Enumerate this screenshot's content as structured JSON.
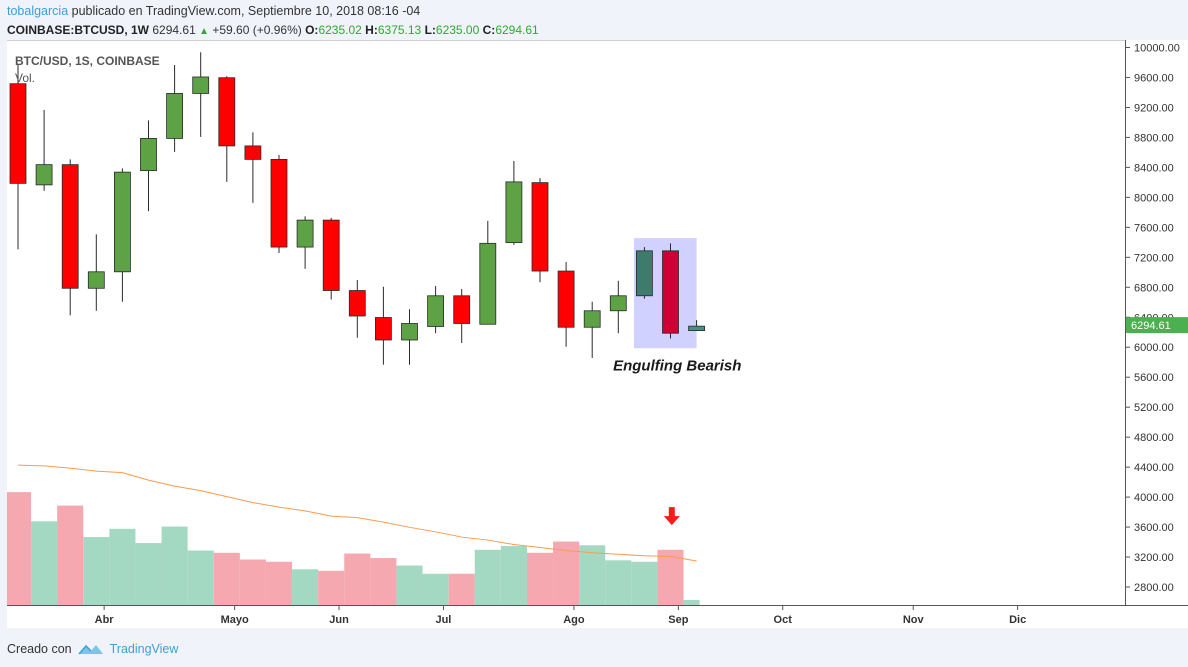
{
  "header": {
    "author": "tobalgarcia",
    "published": "publicado en TradingView.com, Septiembre 10, 2018 08:16 -04",
    "symbol": "COINBASE:BTCUSD, 1W",
    "last": "6294.61",
    "change": "+59.60 (+0.96%)",
    "o_label": "O:",
    "o": "6235.02",
    "h_label": "H:",
    "h": "6375.13",
    "l_label": "L:",
    "l": "6235.00",
    "c_label": "C:",
    "c": "6294.61"
  },
  "chart_data": {
    "type": "candlestick",
    "pane_title": "BTC/USD, 1S, COINBASE",
    "volume_label": "Vol.",
    "annotation": "Engulfing Bearish",
    "last_price_label": "6294.61",
    "y_ticks": [
      "10000.00",
      "9600.00",
      "9200.00",
      "8800.00",
      "8400.00",
      "8000.00",
      "7600.00",
      "7200.00",
      "6800.00",
      "6400.00",
      "6000.00",
      "5600.00",
      "5200.00",
      "4800.00",
      "4400.00",
      "4000.00",
      "3600.00",
      "3200.00",
      "2800.00"
    ],
    "y_tick_values": [
      10000,
      9600,
      9200,
      8800,
      8400,
      8000,
      7600,
      7200,
      6800,
      6400,
      6000,
      5600,
      5200,
      4800,
      4400,
      4000,
      3600,
      3200,
      2800
    ],
    "ylim": [
      2560,
      10100
    ],
    "x_labels": [
      "Abr",
      "Mayo",
      "Jun",
      "Jul",
      "Ago",
      "Sep",
      "Oct",
      "Nov",
      "Dic"
    ],
    "x_label_index": [
      3.3,
      8.3,
      12.3,
      16.3,
      21.3,
      25.3,
      29.3,
      34.3,
      38.3
    ],
    "candles": [
      {
        "o": 9530,
        "h": 9780,
        "l": 7320,
        "c": 8200
      },
      {
        "o": 8180,
        "h": 9180,
        "l": 8100,
        "c": 8450
      },
      {
        "o": 8450,
        "h": 8520,
        "l": 6440,
        "c": 6800
      },
      {
        "o": 6800,
        "h": 7520,
        "l": 6500,
        "c": 7020
      },
      {
        "o": 7020,
        "h": 8400,
        "l": 6620,
        "c": 8350
      },
      {
        "o": 8370,
        "h": 9040,
        "l": 7830,
        "c": 8800
      },
      {
        "o": 8800,
        "h": 9780,
        "l": 8620,
        "c": 9400
      },
      {
        "o": 9400,
        "h": 9950,
        "l": 8820,
        "c": 9620
      },
      {
        "o": 9610,
        "h": 9630,
        "l": 8220,
        "c": 8700
      },
      {
        "o": 8700,
        "h": 8880,
        "l": 7940,
        "c": 8520
      },
      {
        "o": 8520,
        "h": 8580,
        "l": 7270,
        "c": 7350
      },
      {
        "o": 7350,
        "h": 7760,
        "l": 7060,
        "c": 7710
      },
      {
        "o": 7710,
        "h": 7740,
        "l": 6650,
        "c": 6770
      },
      {
        "o": 6770,
        "h": 6910,
        "l": 6140,
        "c": 6430
      },
      {
        "o": 6410,
        "h": 6820,
        "l": 5780,
        "c": 6110
      },
      {
        "o": 6110,
        "h": 6520,
        "l": 5780,
        "c": 6330
      },
      {
        "o": 6290,
        "h": 6830,
        "l": 6200,
        "c": 6700
      },
      {
        "o": 6700,
        "h": 6790,
        "l": 6070,
        "c": 6330
      },
      {
        "o": 6320,
        "h": 7700,
        "l": 6320,
        "c": 7400
      },
      {
        "o": 7410,
        "h": 8500,
        "l": 7380,
        "c": 8220
      },
      {
        "o": 8210,
        "h": 8270,
        "l": 6880,
        "c": 7030
      },
      {
        "o": 7030,
        "h": 7150,
        "l": 6020,
        "c": 6280
      },
      {
        "o": 6280,
        "h": 6620,
        "l": 5870,
        "c": 6500
      },
      {
        "o": 6500,
        "h": 6900,
        "l": 6200,
        "c": 6700
      },
      {
        "o": 6700,
        "h": 7350,
        "l": 6660,
        "c": 7300
      },
      {
        "o": 7300,
        "h": 7400,
        "l": 6130,
        "c": 6200
      },
      {
        "o": 6235.02,
        "h": 6375.13,
        "l": 6235.0,
        "c": 6294.61
      }
    ],
    "volume": [
      4080,
      3690,
      3900,
      3480,
      3590,
      3400,
      3620,
      3300,
      3270,
      3180,
      3150,
      3050,
      3030,
      3260,
      3200,
      3100,
      2990,
      2990,
      3310,
      3360,
      3270,
      3420,
      3370,
      3170,
      3150,
      3310,
      2640
    ],
    "volume_ma": [
      4440,
      4430,
      4400,
      4360,
      4340,
      4240,
      4160,
      4100,
      4020,
      3940,
      3880,
      3830,
      3760,
      3740,
      3680,
      3610,
      3550,
      3480,
      3440,
      3380,
      3340,
      3300,
      3270,
      3250,
      3230,
      3220,
      3160
    ],
    "highlight_range": [
      23.6,
      26
    ],
    "highlight_price": [
      6000,
      7470
    ],
    "colors": {
      "up": "#5da244",
      "down": "#ff0000",
      "engulf_up": "#3e7b6a",
      "engulf_down": "#cf0033",
      "last_small": "#4a8f7f",
      "vol_up": "#a3d9c2",
      "vol_down": "#f5a8b0",
      "ma": "#ff9a4d",
      "highlight": "#c9c9ff",
      "last_badge": "#4caf50",
      "arrow": "#ff1a1a"
    }
  },
  "footer": {
    "created_with": "Creado con",
    "brand": "TradingView"
  }
}
